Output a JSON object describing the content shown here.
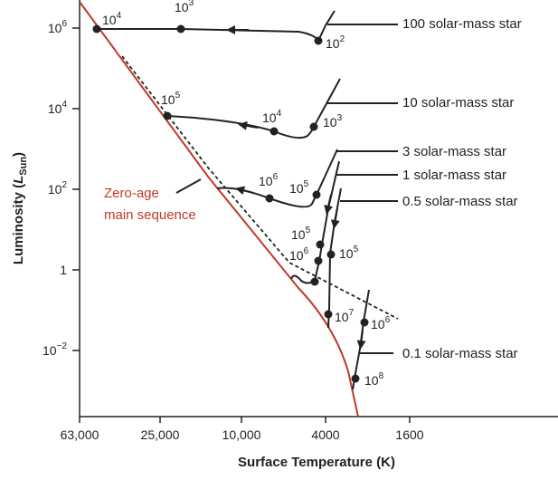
{
  "chart_data": {
    "type": "line",
    "xlabel": "Surface Temperature (K)",
    "ylabel": {
      "main": "Luminosity (",
      "sym": "L",
      "sub": "Sun",
      "close": ")"
    },
    "x_scale": "log, reversed",
    "y_scale": "log",
    "x_ticks": [
      "63,000",
      "25,000",
      "10,000",
      "4000",
      "1600"
    ],
    "y_ticks": [
      {
        "base": "10",
        "exp": "6"
      },
      {
        "base": "10",
        "exp": "4"
      },
      {
        "base": "10",
        "exp": "2"
      },
      {
        "base": "1",
        "exp": ""
      },
      {
        "base": "10",
        "exp": "−2"
      }
    ],
    "zams_label": [
      "Zero-age",
      "main sequence"
    ],
    "colors": {
      "zams": "#c0392b",
      "tracks": "#222222"
    },
    "tracks": [
      {
        "name": "100 solar-mass star",
        "ages": [
          {
            "base": "10",
            "exp": "4"
          },
          {
            "base": "10",
            "exp": "3"
          },
          {
            "base": "10",
            "exp": "2"
          }
        ]
      },
      {
        "name": "10 solar-mass star",
        "ages": [
          {
            "base": "10",
            "exp": "5"
          },
          {
            "base": "10",
            "exp": "4"
          },
          {
            "base": "10",
            "exp": "3"
          }
        ]
      },
      {
        "name": "3 solar-mass star",
        "ages": [
          {
            "base": "10",
            "exp": "6"
          },
          {
            "base": "10",
            "exp": "5"
          }
        ]
      },
      {
        "name": "1 solar-mass star",
        "ages": [
          {
            "base": "10",
            "exp": "5"
          },
          {
            "base": "10",
            "exp": "6"
          },
          {
            "base": "10",
            "exp": "7"
          }
        ]
      },
      {
        "name": "0.5 solar-mass star",
        "ages": [
          {
            "base": "10",
            "exp": "5"
          }
        ]
      },
      {
        "name": "0.1 solar-mass star",
        "ages": [
          {
            "base": "10",
            "exp": "6"
          },
          {
            "base": "10",
            "exp": "8"
          }
        ]
      }
    ]
  }
}
